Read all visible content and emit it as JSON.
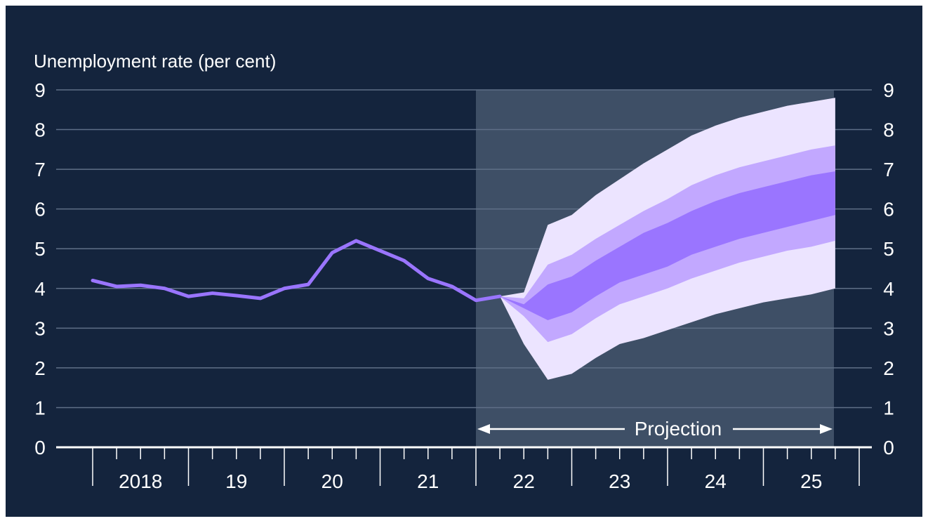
{
  "chart_data": {
    "type": "line",
    "ylabel": "Unemployment rate (per cent)",
    "ylim": [
      0,
      9
    ],
    "yticks": [
      0,
      1,
      2,
      3,
      4,
      5,
      6,
      7,
      8,
      9
    ],
    "grid": true,
    "year_labels": [
      "2018",
      "19",
      "20",
      "21",
      "22",
      "23",
      "24",
      "25"
    ],
    "xlim": [
      2018.0,
      2026.0
    ],
    "projection_start": 2022.0,
    "projection_label": "Projection",
    "series": [
      {
        "values": [
          [
            2018.0,
            4.2
          ],
          [
            2018.25,
            4.05
          ],
          [
            2018.5,
            4.08
          ],
          [
            2018.75,
            4.0
          ],
          [
            2019.0,
            3.8
          ],
          [
            2019.25,
            3.88
          ],
          [
            2019.5,
            3.82
          ],
          [
            2019.75,
            3.75
          ],
          [
            2020.0,
            4.0
          ],
          [
            2020.25,
            4.1
          ],
          [
            2020.5,
            4.9
          ],
          [
            2020.75,
            5.2
          ],
          [
            2021.0,
            4.95
          ],
          [
            2021.25,
            4.7
          ],
          [
            2021.5,
            4.25
          ],
          [
            2021.75,
            4.05
          ],
          [
            2022.0,
            3.7
          ],
          [
            2022.25,
            3.8
          ]
        ]
      }
    ],
    "fan": {
      "x": [
        2022.25,
        2022.5,
        2022.75,
        2023.0,
        2023.25,
        2023.5,
        2023.75,
        2024.0,
        2024.25,
        2024.5,
        2024.75,
        2025.0,
        2025.25,
        2025.5,
        2025.75
      ],
      "bands": [
        {
          "color": "#ece4ff",
          "lower": [
            3.8,
            2.6,
            1.7,
            1.85,
            2.25,
            2.6,
            2.75,
            2.95,
            3.15,
            3.35,
            3.5,
            3.65,
            3.75,
            3.85,
            4.0
          ],
          "upper": [
            3.8,
            3.9,
            5.6,
            5.85,
            6.35,
            6.75,
            7.15,
            7.5,
            7.85,
            8.1,
            8.3,
            8.45,
            8.6,
            8.7,
            8.8
          ]
        },
        {
          "color": "#c2a8ff",
          "lower": [
            3.8,
            3.3,
            2.65,
            2.85,
            3.25,
            3.6,
            3.8,
            4.0,
            4.25,
            4.45,
            4.65,
            4.8,
            4.95,
            5.05,
            5.2
          ],
          "upper": [
            3.8,
            3.75,
            4.6,
            4.85,
            5.25,
            5.6,
            5.95,
            6.25,
            6.6,
            6.85,
            7.05,
            7.2,
            7.35,
            7.5,
            7.6
          ]
        },
        {
          "color": "#9a75ff",
          "lower": [
            3.8,
            3.5,
            3.2,
            3.4,
            3.8,
            4.15,
            4.35,
            4.55,
            4.85,
            5.05,
            5.25,
            5.4,
            5.55,
            5.7,
            5.85
          ],
          "upper": [
            3.8,
            3.6,
            4.1,
            4.3,
            4.7,
            5.05,
            5.4,
            5.65,
            5.95,
            6.2,
            6.4,
            6.55,
            6.7,
            6.85,
            6.95
          ]
        }
      ]
    }
  },
  "colors": {
    "background": "#14243d",
    "projection_shade": "#3e4f66",
    "line": "#9a75ff",
    "grid": "#5f6f87",
    "axis": "#ffffff"
  }
}
